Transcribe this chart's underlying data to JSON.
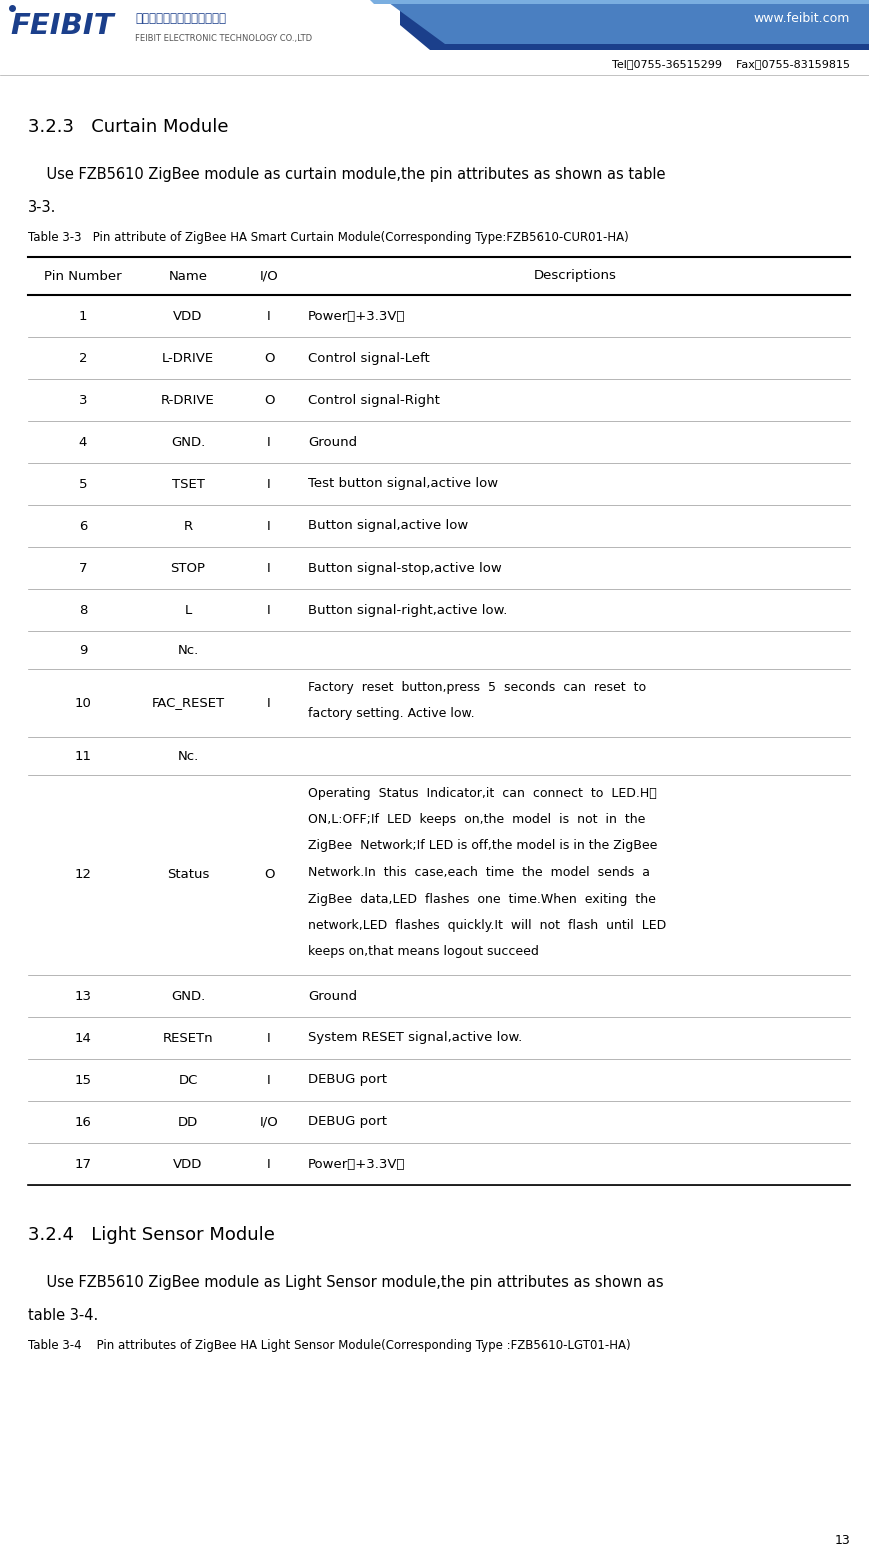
{
  "page_number": "13",
  "website": "www.feibit.com",
  "tel": "Tel：0755-36515299    Fax：0755-83159815",
  "company_cn": "深圳市飞比电子科技有限公司",
  "company_en": "FEIBIT ELECTRONIC TECHNOLOGY CO.,LTD",
  "logo_feibit": "FEIBIT",
  "section_title": "3.2.3   Curtain Module",
  "intro_line1": "    Use FZB5610 ZigBee module as curtain module,the pin attributes as shown as table",
  "intro_line2": "3-3.",
  "table_caption": "Table 3-3   Pin attribute of ZigBee HA Smart Curtain Module(Corresponding Type:FZB5610-CUR01-HA)",
  "table_headers": [
    "Pin Number",
    "Name",
    "I/O",
    "Descriptions"
  ],
  "table_data": [
    [
      "1",
      "VDD",
      "I",
      "Power（+3.3V）"
    ],
    [
      "2",
      "L-DRIVE",
      "O",
      "Control signal-Left"
    ],
    [
      "3",
      "R-DRIVE",
      "O",
      "Control signal-Right"
    ],
    [
      "4",
      "GND.",
      "I",
      "Ground"
    ],
    [
      "5",
      "TSET",
      "I",
      "Test button signal,active low"
    ],
    [
      "6",
      "R",
      "I",
      "Button signal,active low"
    ],
    [
      "7",
      "STOP",
      "I",
      "Button signal-stop,active low"
    ],
    [
      "8",
      "L",
      "I",
      "Button signal-right,active low."
    ],
    [
      "9",
      "Nc.",
      "",
      ""
    ],
    [
      "10",
      "FAC_RESET",
      "I",
      "Factory  reset  button,press  5  seconds  can  reset  to\nfactory setting. Active low."
    ],
    [
      "11",
      "Nc.",
      "",
      ""
    ],
    [
      "12",
      "Status",
      "O",
      "Operating  Status  Indicator,it  can  connect  to  LED.H：\nON,L:OFF;If  LED  keeps  on,the  model  is  not  in  the\nZigBee  Network;If LED is off,the model is in the ZigBee\nNetwork.In  this  case,each  time  the  model  sends  a\nZigBee  data,LED  flashes  one  time.When  exiting  the\nnetwork,LED  flashes  quickly.It  will  not  flash  until  LED\nkeeps on,that means logout succeed"
    ],
    [
      "13",
      "GND.",
      "",
      "Ground"
    ],
    [
      "14",
      "RESETn",
      "I",
      "System RESET signal,active low."
    ],
    [
      "15",
      "DC",
      "I",
      "DEBUG port"
    ],
    [
      "16",
      "DD",
      "I/O",
      "DEBUG port"
    ],
    [
      "17",
      "VDD",
      "I",
      "Power（+3.3V）"
    ]
  ],
  "section2_title": "3.2.4   Light Sensor Module",
  "intro2_line1": "    Use FZB5610 ZigBee module as Light Sensor module,the pin attributes as shown as",
  "intro2_line2": "table 3-4.",
  "table2_caption": "Table 3-4    Pin attributes of ZigBee HA Light Sensor Module(Corresponding Type :FZB5610-LGT01-HA)",
  "bg_color": "#ffffff",
  "header_blue_dark": "#1b3f8b",
  "header_blue_mid": "#2e5fa8",
  "header_blue_light": "#4a7fc1",
  "header_stripe": "#3a6ab5"
}
